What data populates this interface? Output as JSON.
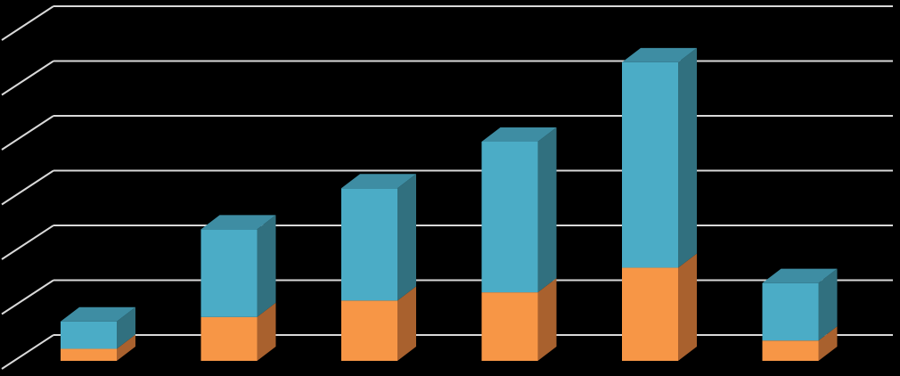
{
  "chart_data": {
    "type": "bar",
    "stacked": true,
    "three_d": true,
    "grid": true,
    "gridline_count": 7,
    "categories": [
      "",
      "",
      "",
      "",
      "",
      ""
    ],
    "series": [
      {
        "values": [
          0.22,
          0.8,
          1.1,
          1.25,
          1.7,
          0.37
        ],
        "color": "#F79646",
        "side_color": "#A9612E",
        "top_color": "#F79646"
      },
      {
        "values": [
          0.5,
          1.6,
          2.05,
          2.75,
          3.75,
          1.05
        ],
        "color": "#4BACC6",
        "side_color": "#31707F",
        "top_color": "#3E8DA3"
      }
    ],
    "ylim": [
      0,
      6
    ],
    "colors": {
      "background": "#000000",
      "gridline": "#D9D9D9"
    }
  }
}
